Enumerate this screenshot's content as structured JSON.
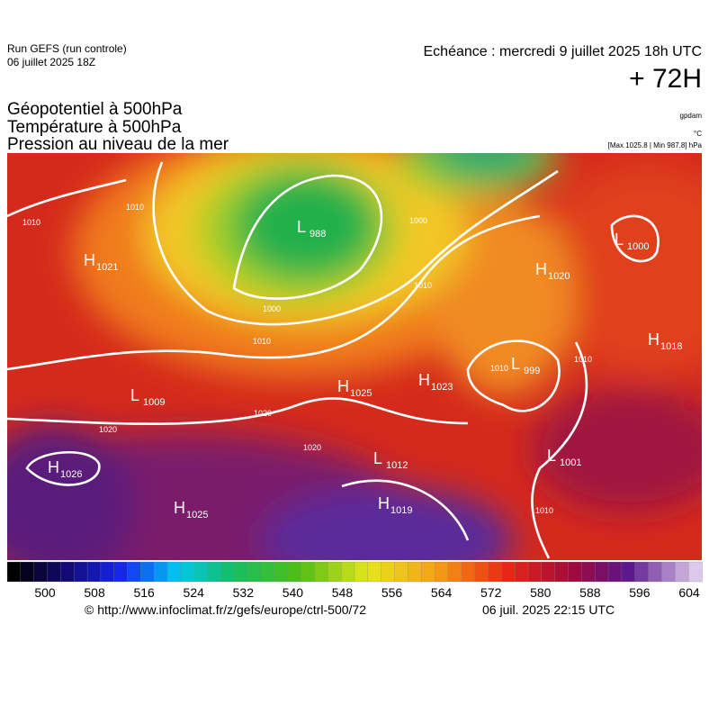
{
  "header": {
    "run": "Run GEFS (run controle)",
    "date": "06 juillet 2025 18Z",
    "echeance": "Echéance : mercredi 9 juillet 2025 18h UTC",
    "lead": "+ 72H"
  },
  "titles": [
    "Géopotentiel à 500hPa",
    "Température à 500hPa",
    "Pression au niveau de la mer"
  ],
  "units": {
    "geopotential": "gpdam",
    "temperature": "°C",
    "pressure": "[Max 1025.8 | Min 987.8] hPa"
  },
  "centers": [
    {
      "type": "H",
      "value": 1021
    },
    {
      "type": "L",
      "value": 988
    },
    {
      "type": "L",
      "value": 1000
    },
    {
      "type": "H",
      "value": 1020
    },
    {
      "type": "H",
      "value": 1018
    },
    {
      "type": "L",
      "value": 999
    },
    {
      "type": "H",
      "value": 1025
    },
    {
      "type": "H",
      "value": 1023
    },
    {
      "type": "L",
      "value": 1009
    },
    {
      "type": "H",
      "value": 1026
    },
    {
      "type": "L",
      "value": 1012
    },
    {
      "type": "L",
      "value": 1001
    },
    {
      "type": "H",
      "value": 1025
    },
    {
      "type": "H",
      "value": 1019
    }
  ],
  "isobar_labels": [
    1010,
    1010,
    1000,
    1010,
    1020,
    1020,
    1020,
    1010,
    1010,
    1010,
    1010,
    1000
  ],
  "colorbar_ticks": [
    500,
    508,
    516,
    524,
    532,
    540,
    548,
    556,
    564,
    572,
    580,
    588,
    596,
    604
  ],
  "footer": {
    "source": "© http://www.infoclimat.fr/z/gefs/europe/ctrl-500/72",
    "generated": "06 juil. 2025 22:15 UTC"
  }
}
